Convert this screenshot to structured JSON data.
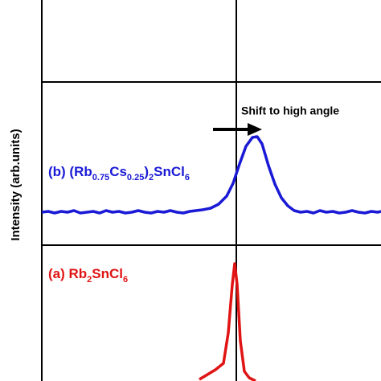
{
  "chart_data": {
    "type": "line",
    "y_label": "Intensity (arb.units)",
    "annotation": "Shift to high angle",
    "xlim": [
      0,
      422
    ],
    "ylim": [
      0,
      474
    ],
    "vline": 242,
    "hlines": [
      372,
      169
    ],
    "series": [
      {
        "name_parts": [
          "(b) (Rb",
          "0.75",
          "Cs",
          "0.25",
          ")",
          "2",
          "SnCl",
          "6"
        ],
        "color": "#1a1ad6",
        "x": [
          0,
          8,
          16,
          24,
          32,
          40,
          48,
          56,
          64,
          72,
          80,
          88,
          96,
          104,
          112,
          120,
          128,
          136,
          144,
          152,
          160,
          168,
          176,
          184,
          192,
          200,
          210,
          220,
          230,
          238,
          246,
          254,
          262,
          268,
          274,
          282,
          290,
          298,
          306,
          314,
          322,
          330,
          338,
          346,
          354,
          362,
          370,
          378,
          386,
          394,
          402,
          410,
          418,
          422
        ],
        "values": [
          210,
          211,
          209,
          211,
          210,
          212,
          209,
          210,
          211,
          209,
          212,
          210,
          211,
          209,
          210,
          212,
          210,
          209,
          211,
          210,
          212,
          210,
          209,
          211,
          212,
          213,
          215,
          220,
          230,
          246,
          270,
          292,
          303,
          304,
          295,
          268,
          245,
          228,
          218,
          212,
          210,
          211,
          209,
          212,
          210,
          211,
          209,
          210,
          212,
          210,
          209,
          211,
          210,
          211
        ]
      },
      {
        "name_parts": [
          "(a) Rb",
          "2",
          "SnCl",
          "6"
        ],
        "color": "#e01414",
        "x": [
          196,
          206,
          216,
          226,
          232,
          237,
          240,
          243,
          247,
          252,
          258,
          266
        ],
        "values": [
          2,
          8,
          14,
          22,
          60,
          120,
          146,
          120,
          50,
          12,
          4,
          0
        ]
      }
    ],
    "label_positions": [
      "upper",
      "lower"
    ]
  }
}
